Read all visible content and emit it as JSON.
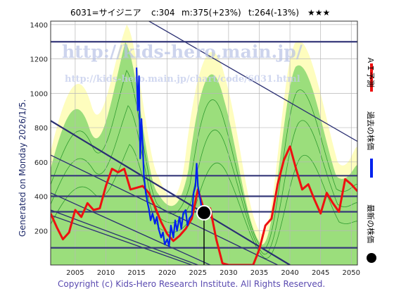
{
  "header": {
    "code_name": "6031=サイジニア",
    "c_label": "c:304",
    "m_label": "m:375(+23%)",
    "t_label": "t:264(-13%)",
    "stars": "★★★"
  },
  "watermark": {
    "url_large": "http://kids-hero.main.jp/",
    "url_small": "http://kids-hero.main.jp/chart/code/6031.html"
  },
  "side_label": "Generated on Monday 2026/1/5.",
  "legend": {
    "ai_forecast": "ＡＩ予測",
    "past_price": "過去の株価",
    "latest_price": "最新の株価"
  },
  "copyright": "Copyright (c) Kids-Hero Research Institute. All Rights Reserved.",
  "colors": {
    "band_outer": "#fefdbe",
    "band_inner": "#9bde7c",
    "band_line": "#2f9a2f",
    "past": "#0022ee",
    "forecast": "#ee1111",
    "trend": "#2a2f72",
    "level": "#36397a"
  },
  "chart_data": {
    "type": "line",
    "xlim": [
      2001,
      2051
    ],
    "ylim": [
      0,
      1420
    ],
    "x_ticks": [
      2005,
      2010,
      2015,
      2020,
      2025,
      2030,
      2035,
      2040,
      2045,
      2050
    ],
    "y_ticks": [
      200,
      400,
      600,
      800,
      1000,
      1200,
      1400
    ],
    "grid": true,
    "current_point": {
      "x": 2026.0,
      "y": 304
    },
    "horizontal_levels": [
      1300,
      520,
      400,
      310,
      100
    ],
    "trend_lines": [
      {
        "x": [
          2001,
          2051
        ],
        "y": [
          1750,
          720
        ]
      },
      {
        "x": [
          2001,
          2040
        ],
        "y": [
          840,
          0
        ]
      },
      {
        "x": [
          2001,
          2038
        ],
        "y": [
          640,
          0
        ]
      },
      {
        "x": [
          2001,
          2027
        ],
        "y": [
          420,
          0
        ]
      },
      {
        "x": [
          2001,
          2025
        ],
        "y": [
          320,
          0
        ]
      },
      {
        "x": [
          2001,
          2024
        ],
        "y": [
          290,
          0
        ]
      }
    ],
    "series": [
      {
        "name": "過去の株価",
        "x": [
          2015.0,
          2015.2,
          2015.4,
          2015.6,
          2015.8,
          2016.0,
          2016.2,
          2016.5,
          2016.8,
          2017.0,
          2017.3,
          2017.6,
          2018.0,
          2018.3,
          2018.6,
          2019.0,
          2019.3,
          2019.6,
          2020.0,
          2020.3,
          2020.6,
          2021.0,
          2021.3,
          2021.6,
          2022.0,
          2022.3,
          2022.6,
          2023.0,
          2023.3,
          2023.6,
          2024.0,
          2024.3,
          2024.6,
          2024.8,
          2025.0,
          2025.2,
          2025.4,
          2025.6,
          2025.8,
          2026.0
        ],
        "y": [
          1150,
          900,
          1100,
          620,
          850,
          700,
          520,
          420,
          360,
          330,
          260,
          300,
          240,
          280,
          210,
          160,
          190,
          120,
          150,
          110,
          230,
          160,
          260,
          200,
          280,
          210,
          300,
          320,
          230,
          270,
          290,
          420,
          460,
          590,
          460,
          420,
          380,
          330,
          310,
          304
        ]
      },
      {
        "name": "ＡＩ予測",
        "x": [
          2001,
          2002,
          2003,
          2004,
          2005,
          2006,
          2007,
          2008,
          2009,
          2010,
          2011,
          2012,
          2013,
          2014,
          2015,
          2016,
          2017,
          2018,
          2019,
          2020,
          2021,
          2022,
          2023,
          2024,
          2025,
          2026,
          2027,
          2028,
          2029,
          2030,
          2031,
          2032,
          2033,
          2034,
          2035,
          2036,
          2037,
          2038,
          2039,
          2040,
          2041,
          2042,
          2043,
          2044,
          2045,
          2046,
          2047,
          2048,
          2049,
          2050,
          2051
        ],
        "y": [
          300,
          220,
          150,
          190,
          320,
          280,
          360,
          320,
          330,
          460,
          560,
          540,
          560,
          440,
          450,
          460,
          420,
          340,
          250,
          180,
          140,
          170,
          210,
          270,
          440,
          320,
          330,
          150,
          10,
          0,
          0,
          0,
          0,
          0,
          90,
          230,
          270,
          470,
          610,
          690,
          560,
          440,
          470,
          380,
          300,
          420,
          360,
          310,
          500,
          470,
          430
        ]
      }
    ]
  }
}
